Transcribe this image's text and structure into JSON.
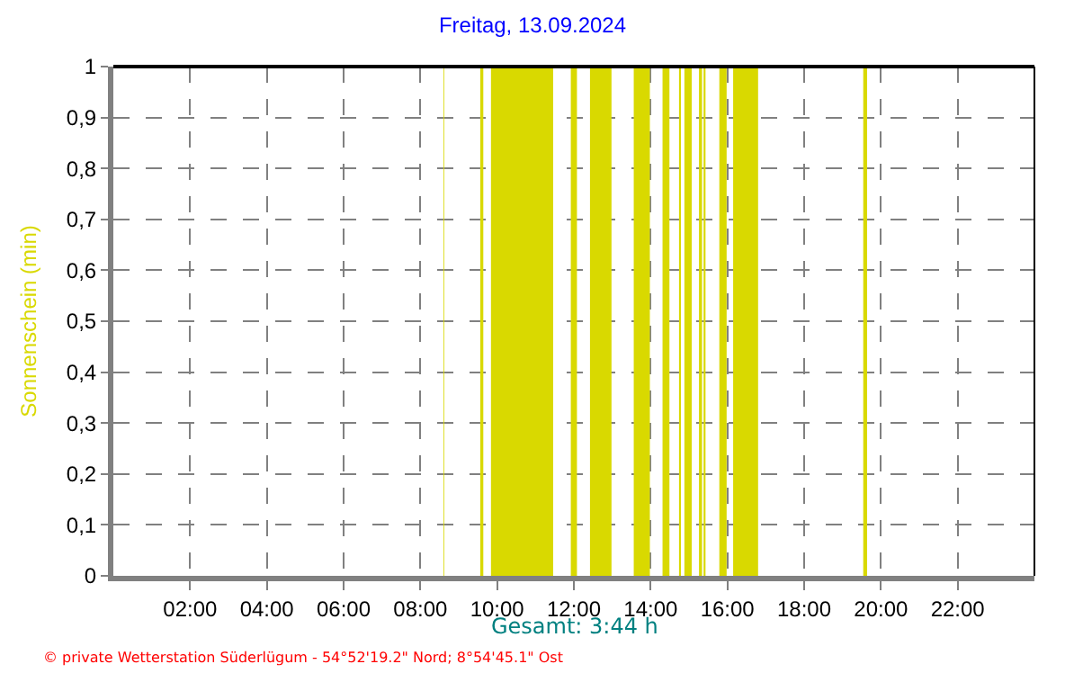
{
  "chart_data": {
    "type": "area",
    "title": "Freitag, 13.09.2024",
    "ylabel": "Sonnenschein (min)",
    "annotations": [
      "Gesamt: 3:44 h",
      "© private Wetterstation Süderlügum - 54°52'19.2\" Nord; 8°54'45.1\" Ost"
    ],
    "x": [
      0,
      8.6,
      8.6,
      8.62,
      8.62,
      9.56,
      9.56,
      9.64,
      9.64,
      9.84,
      9.84,
      11.46,
      11.46,
      11.92,
      11.92,
      12.08,
      12.08,
      12.42,
      12.42,
      12.98,
      12.98,
      13.56,
      13.56,
      13.98,
      13.98,
      14.31,
      14.31,
      14.49,
      14.49,
      14.74,
      14.74,
      14.79,
      14.79,
      14.88,
      14.88,
      15.07,
      15.07,
      15.26,
      15.26,
      15.34,
      15.34,
      15.38,
      15.38,
      15.43,
      15.43,
      15.79,
      15.79,
      15.98,
      15.98,
      16.15,
      16.15,
      16.8,
      16.8,
      19.54,
      19.54,
      19.64,
      19.64,
      24
    ],
    "series": [
      {
        "color": "#d9d900",
        "values": [
          0,
          0,
          1,
          1,
          0,
          0,
          1,
          1,
          0,
          0,
          1,
          1,
          0,
          0,
          1,
          1,
          0,
          0,
          1,
          1,
          0,
          0,
          1,
          1,
          0,
          0,
          1,
          1,
          0,
          0,
          1,
          1,
          0,
          0,
          1,
          1,
          0,
          0,
          1,
          1,
          0,
          0,
          1,
          1,
          0,
          0,
          1,
          1,
          0,
          0,
          1,
          1,
          0,
          0,
          1,
          1,
          0,
          0
        ]
      }
    ],
    "xlim": [
      0,
      24
    ],
    "xticks": [
      {
        "value": 2,
        "label": "02:00"
      },
      {
        "value": 4,
        "label": "04:00"
      },
      {
        "value": 6,
        "label": "06:00"
      },
      {
        "value": 8,
        "label": "08:00"
      },
      {
        "value": 10,
        "label": "10:00"
      },
      {
        "value": 12,
        "label": "12:00"
      },
      {
        "value": 14,
        "label": "14:00"
      },
      {
        "value": 16,
        "label": "16:00"
      },
      {
        "value": 18,
        "label": "18:00"
      },
      {
        "value": 20,
        "label": "20:00"
      },
      {
        "value": 22,
        "label": "22:00"
      }
    ],
    "ylim": [
      0,
      1
    ],
    "yticks": [
      0,
      {
        "value": 0.1,
        "label": "0,1"
      },
      {
        "value": 0.2,
        "label": "0,2"
      },
      {
        "value": 0.3,
        "label": "0,3"
      },
      {
        "value": 0.4,
        "label": "0,4"
      },
      {
        "value": 0.5,
        "label": "0,5"
      },
      {
        "value": 0.6,
        "label": "0,6"
      },
      {
        "value": 0.7,
        "label": "0,7"
      },
      {
        "value": 0.8,
        "label": "0,8"
      },
      {
        "value": 0.9,
        "label": "0,9"
      },
      1
    ],
    "grid": true
  }
}
